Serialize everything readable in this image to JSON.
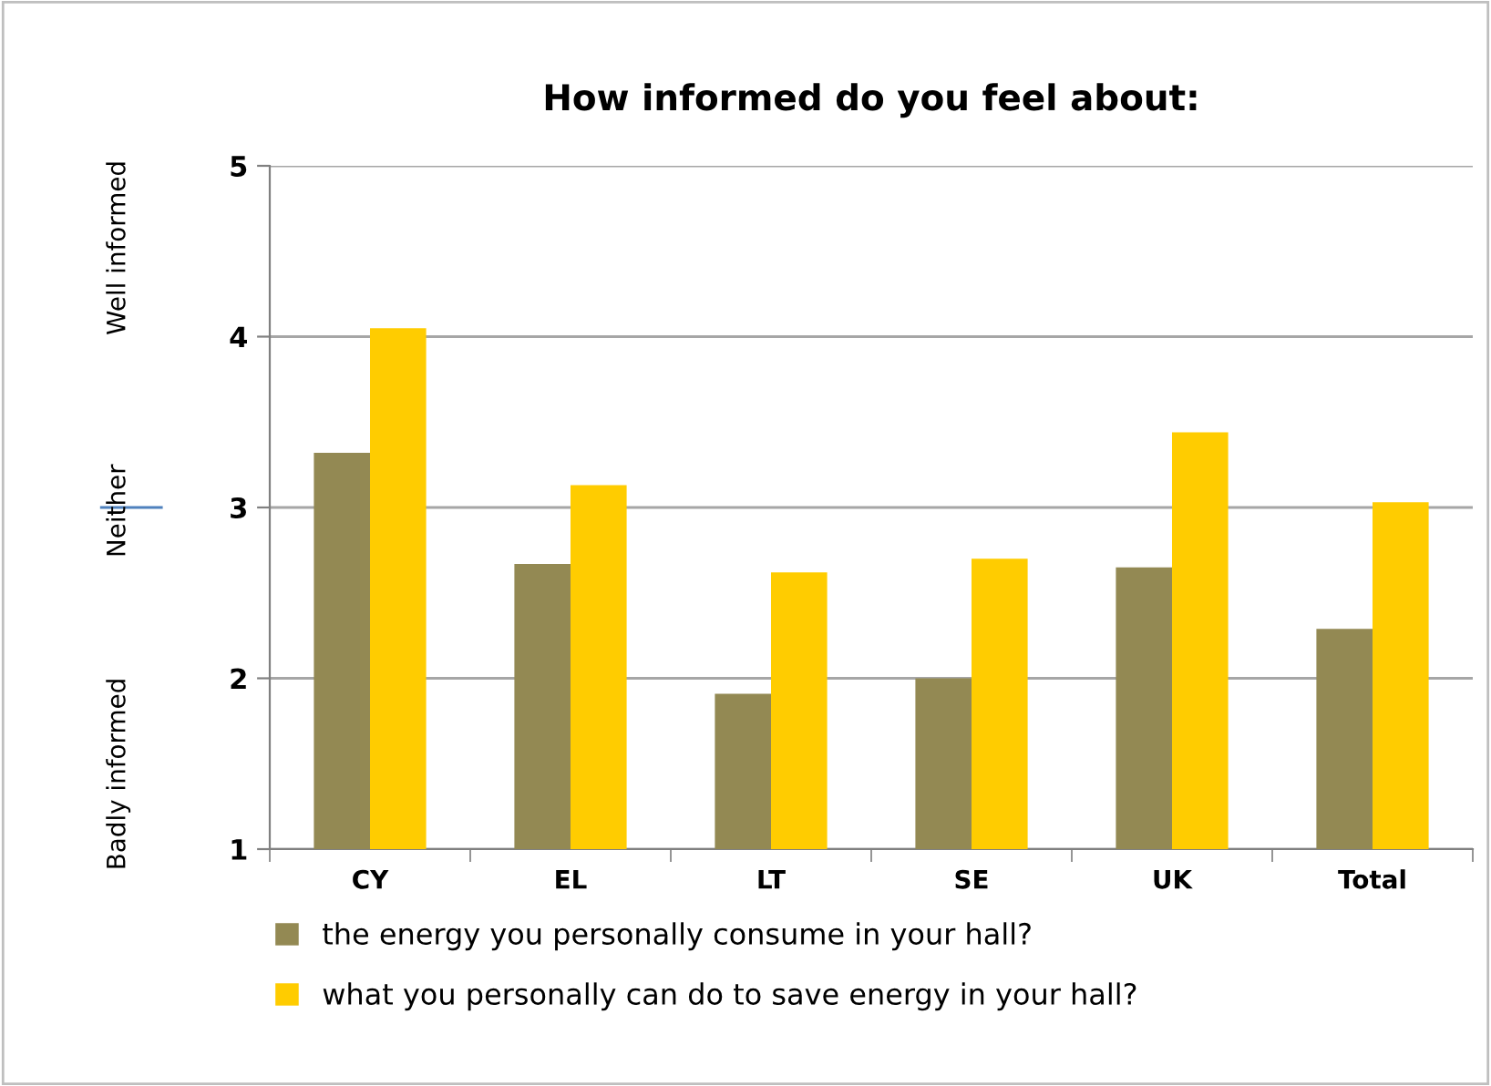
{
  "chart_data": {
    "type": "bar",
    "title": "How informed do you feel about:",
    "categories": [
      "CY",
      "EL",
      "LT",
      "SE",
      "UK",
      "Total"
    ],
    "series": [
      {
        "name": "the energy you personally consume in your hall?",
        "color": "#938953",
        "values": [
          3.32,
          2.67,
          1.91,
          2.0,
          2.65,
          2.29
        ]
      },
      {
        "name": "what you personally can do to save energy in your hall?",
        "color": "#ffcc00",
        "values": [
          4.05,
          3.13,
          2.62,
          2.7,
          3.44,
          3.03
        ]
      }
    ],
    "ylim": [
      1,
      5
    ],
    "yticks": [
      1,
      2,
      3,
      4,
      5
    ],
    "grid": "y",
    "legend": "bottom",
    "annotations": [
      "Well informed",
      "Neither",
      "Badly informed"
    ]
  }
}
